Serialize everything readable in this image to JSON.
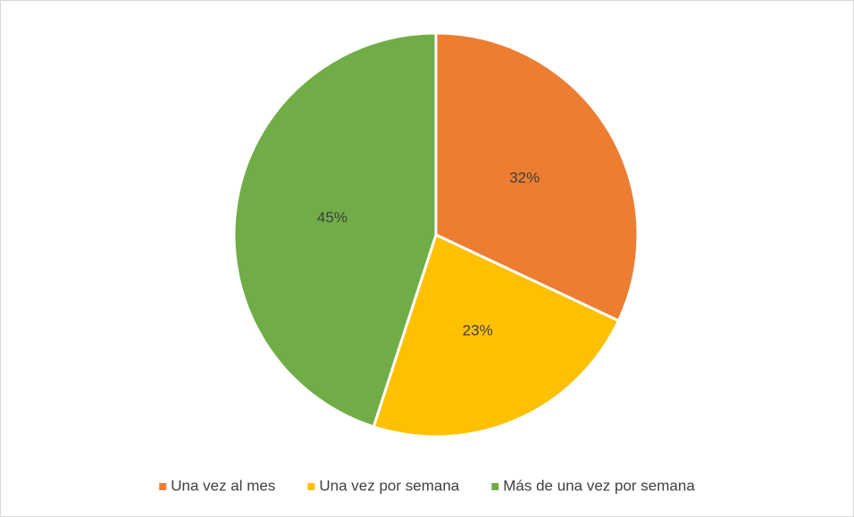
{
  "chart_data": {
    "type": "pie",
    "categories": [
      "Una vez al mes",
      "Una vez por semana",
      "Más de una vez por semana"
    ],
    "values": [
      32,
      23,
      45
    ],
    "value_labels": [
      "32%",
      "23%",
      "45%"
    ],
    "colors": [
      "#ED7D31",
      "#FFC000",
      "#70AD47"
    ],
    "legend": "bottom"
  }
}
